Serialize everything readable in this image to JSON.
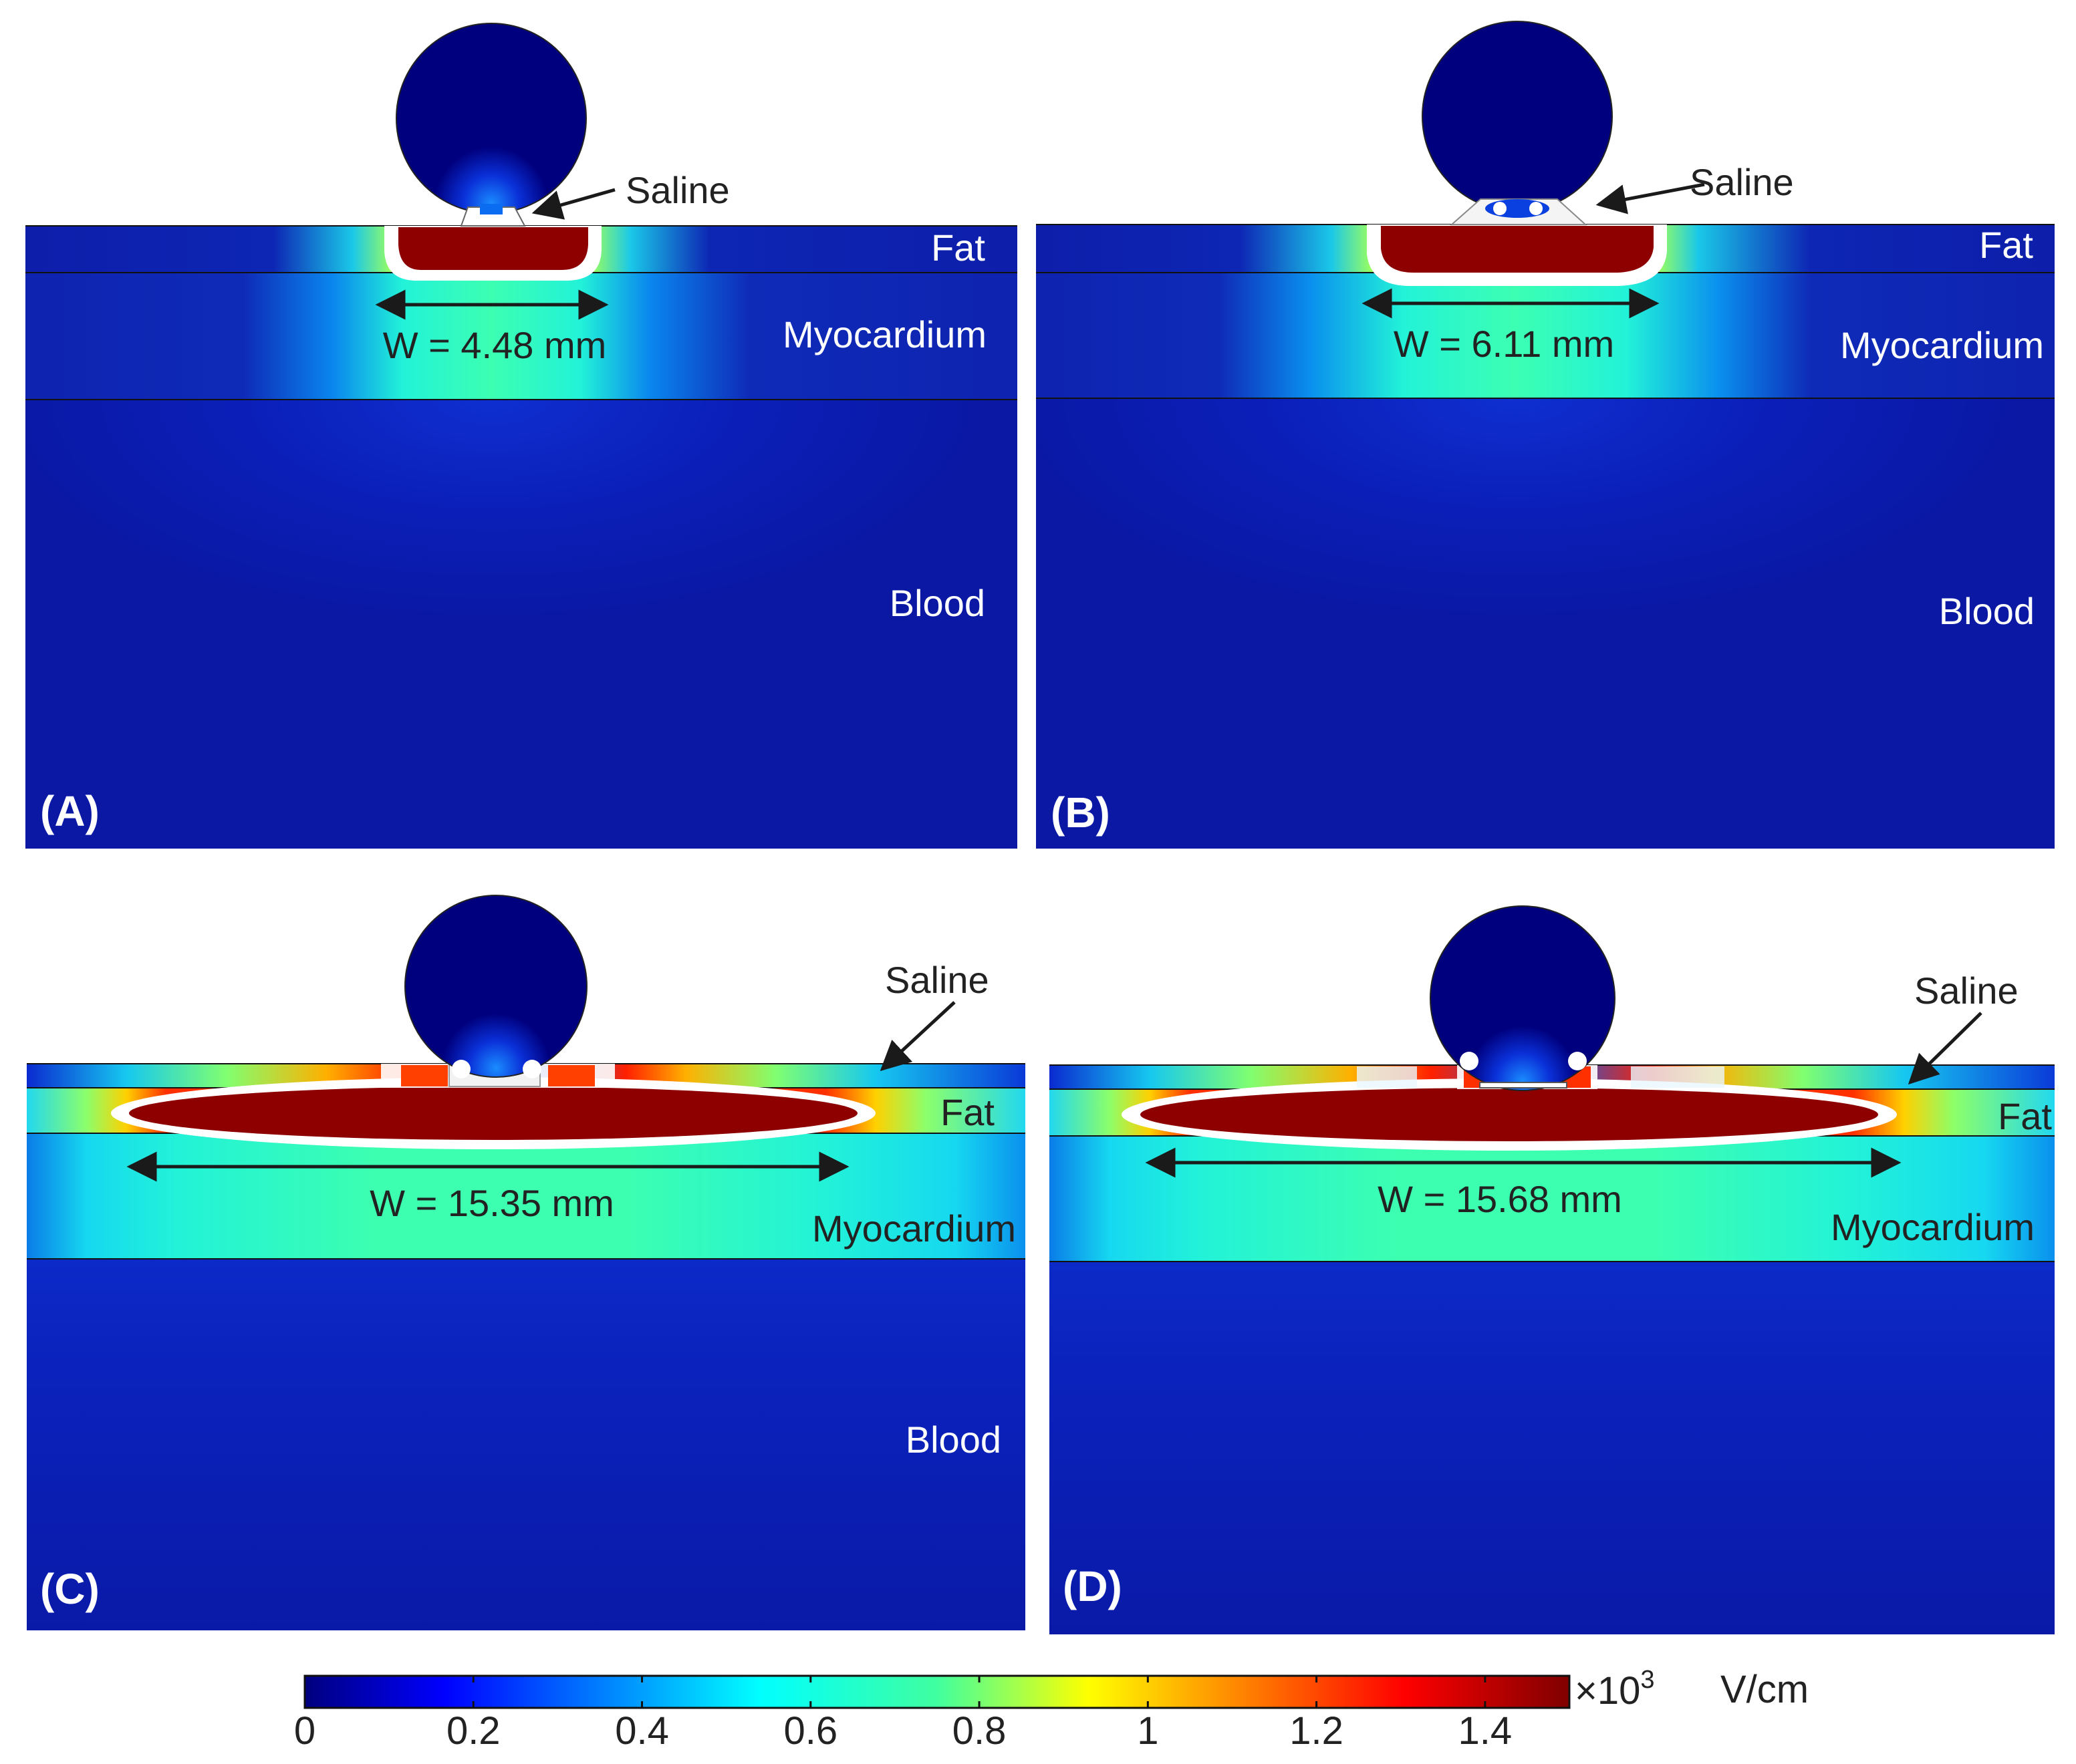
{
  "panels": [
    {
      "id": "A",
      "panel_label": "(A)",
      "saline_label": "Saline",
      "layer_labels": {
        "fat": "Fat",
        "myocardium": "Myocardium",
        "blood": "Blood"
      },
      "width_label": "W = 4.48 mm",
      "width_mm": 4.48
    },
    {
      "id": "B",
      "panel_label": "(B)",
      "saline_label": "Saline",
      "layer_labels": {
        "fat": "Fat",
        "myocardium": "Myocardium",
        "blood": "Blood"
      },
      "width_label": "W = 6.11 mm",
      "width_mm": 6.11
    },
    {
      "id": "C",
      "panel_label": "(C)",
      "saline_label": "Saline",
      "layer_labels": {
        "fat": "Fat",
        "myocardium": "Myocardium",
        "blood": "Blood"
      },
      "width_label": "W = 15.35 mm",
      "width_mm": 15.35
    },
    {
      "id": "D",
      "panel_label": "(D)",
      "saline_label": "Saline",
      "layer_labels": {
        "fat": "Fat",
        "myocardium": "Myocardium",
        "blood": ""
      },
      "width_label": "W = 15.68 mm",
      "width_mm": 15.68
    }
  ],
  "colorbar": {
    "ticks": [
      "0",
      "0.2",
      "0.4",
      "0.6",
      "0.8",
      "1",
      "1.2",
      "1.4"
    ],
    "tick_values": [
      0,
      0.2,
      0.4,
      0.6,
      0.8,
      1.0,
      1.2,
      1.4
    ],
    "range": [
      0,
      1.5
    ],
    "multiplier": "×10",
    "exponent": "3",
    "unit": "V/cm",
    "colormap": "jet"
  },
  "colors": {
    "background_field": "#0a1aa8",
    "electrode": "#00007e",
    "ablation_core": "#8b0000",
    "contour": "#ffffff"
  }
}
